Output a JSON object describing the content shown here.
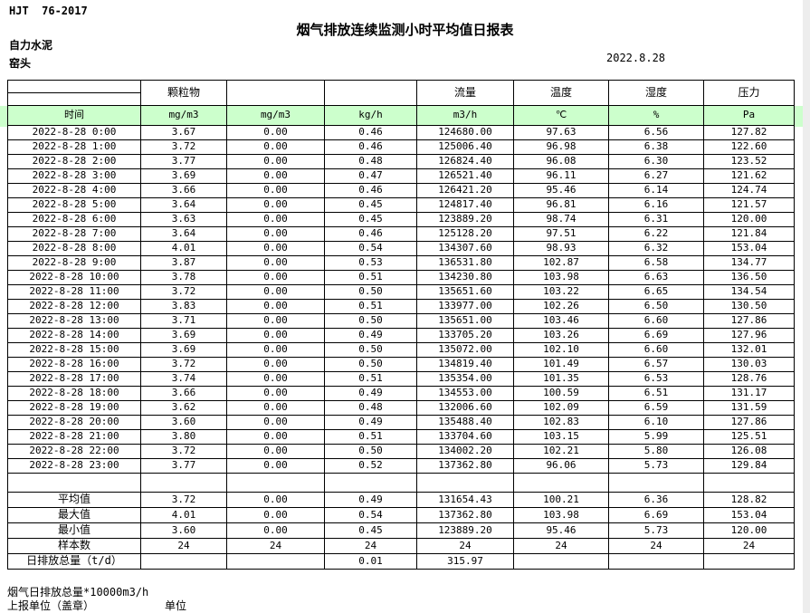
{
  "page": {
    "doc_code": "HJT  76-2017",
    "title": "烟气排放连续监测小时平均值日报表",
    "company": "自力水泥",
    "station": "窑头",
    "date": "2022.8.28"
  },
  "colors": {
    "unit_row_bg": "#ccffcc",
    "table_border": "#000000"
  },
  "table": {
    "group_headers": [
      "",
      "颗粒物",
      "",
      "",
      "流量",
      "温度",
      "湿度",
      "压力"
    ],
    "unit_row": [
      "时间",
      "mg/m3",
      "mg/m3",
      "kg/h",
      "m3/h",
      "℃",
      "%",
      "Pa"
    ],
    "rows": [
      [
        "2022-8-28 0:00",
        "3.67",
        "0.00",
        "0.46",
        "124680.00",
        "97.63",
        "6.56",
        "127.82"
      ],
      [
        "2022-8-28 1:00",
        "3.72",
        "0.00",
        "0.46",
        "125006.40",
        "96.98",
        "6.38",
        "122.60"
      ],
      [
        "2022-8-28 2:00",
        "3.77",
        "0.00",
        "0.48",
        "126824.40",
        "96.08",
        "6.30",
        "123.52"
      ],
      [
        "2022-8-28 3:00",
        "3.69",
        "0.00",
        "0.47",
        "126521.40",
        "96.11",
        "6.27",
        "121.62"
      ],
      [
        "2022-8-28 4:00",
        "3.66",
        "0.00",
        "0.46",
        "126421.20",
        "95.46",
        "6.14",
        "124.74"
      ],
      [
        "2022-8-28 5:00",
        "3.64",
        "0.00",
        "0.45",
        "124817.40",
        "96.81",
        "6.16",
        "121.57"
      ],
      [
        "2022-8-28 6:00",
        "3.63",
        "0.00",
        "0.45",
        "123889.20",
        "98.74",
        "6.31",
        "120.00"
      ],
      [
        "2022-8-28 7:00",
        "3.64",
        "0.00",
        "0.46",
        "125128.20",
        "97.51",
        "6.22",
        "121.84"
      ],
      [
        "2022-8-28 8:00",
        "4.01",
        "0.00",
        "0.54",
        "134307.60",
        "98.93",
        "6.32",
        "153.04"
      ],
      [
        "2022-8-28 9:00",
        "3.87",
        "0.00",
        "0.53",
        "136531.80",
        "102.87",
        "6.58",
        "134.77"
      ],
      [
        "2022-8-28 10:00",
        "3.78",
        "0.00",
        "0.51",
        "134230.80",
        "103.98",
        "6.63",
        "136.50"
      ],
      [
        "2022-8-28 11:00",
        "3.72",
        "0.00",
        "0.50",
        "135651.60",
        "103.22",
        "6.65",
        "134.54"
      ],
      [
        "2022-8-28 12:00",
        "3.83",
        "0.00",
        "0.51",
        "133977.00",
        "102.26",
        "6.50",
        "130.50"
      ],
      [
        "2022-8-28 13:00",
        "3.71",
        "0.00",
        "0.50",
        "135651.00",
        "103.46",
        "6.60",
        "127.86"
      ],
      [
        "2022-8-28 14:00",
        "3.69",
        "0.00",
        "0.49",
        "133705.20",
        "103.26",
        "6.69",
        "127.96"
      ],
      [
        "2022-8-28 15:00",
        "3.69",
        "0.00",
        "0.50",
        "135072.00",
        "102.10",
        "6.60",
        "132.01"
      ],
      [
        "2022-8-28 16:00",
        "3.72",
        "0.00",
        "0.50",
        "134819.40",
        "101.49",
        "6.57",
        "130.03"
      ],
      [
        "2022-8-28 17:00",
        "3.74",
        "0.00",
        "0.51",
        "135354.00",
        "101.35",
        "6.53",
        "128.76"
      ],
      [
        "2022-8-28 18:00",
        "3.66",
        "0.00",
        "0.49",
        "134553.00",
        "100.59",
        "6.51",
        "131.17"
      ],
      [
        "2022-8-28 19:00",
        "3.62",
        "0.00",
        "0.48",
        "132006.60",
        "102.09",
        "6.59",
        "131.59"
      ],
      [
        "2022-8-28 20:00",
        "3.60",
        "0.00",
        "0.49",
        "135488.40",
        "102.83",
        "6.10",
        "127.86"
      ],
      [
        "2022-8-28 21:00",
        "3.80",
        "0.00",
        "0.51",
        "133704.60",
        "103.15",
        "5.99",
        "125.51"
      ],
      [
        "2022-8-28 22:00",
        "3.72",
        "0.00",
        "0.50",
        "134002.20",
        "102.21",
        "5.80",
        "126.08"
      ],
      [
        "2022-8-28 23:00",
        "3.77",
        "0.00",
        "0.52",
        "137362.80",
        "96.06",
        "5.73",
        "129.84"
      ]
    ],
    "summary": [
      [
        "平均值",
        "3.72",
        "0.00",
        "0.49",
        "131654.43",
        "100.21",
        "6.36",
        "128.82"
      ],
      [
        "最大值",
        "4.01",
        "0.00",
        "0.54",
        "137362.80",
        "103.98",
        "6.69",
        "153.04"
      ],
      [
        "最小值",
        "3.60",
        "0.00",
        "0.45",
        "123889.20",
        "95.46",
        "5.73",
        "120.00"
      ],
      [
        "样本数",
        "24",
        "24",
        "24",
        "24",
        "24",
        "24",
        "24"
      ],
      [
        "日排放总量（t/d）",
        "",
        "",
        "0.01",
        "315.97",
        "",
        "",
        ""
      ]
    ]
  },
  "footer": {
    "note": "烟气日排放总量*10000m3/h",
    "report_unit_label": "上报单位（盖章）",
    "unit_label": "单位"
  }
}
